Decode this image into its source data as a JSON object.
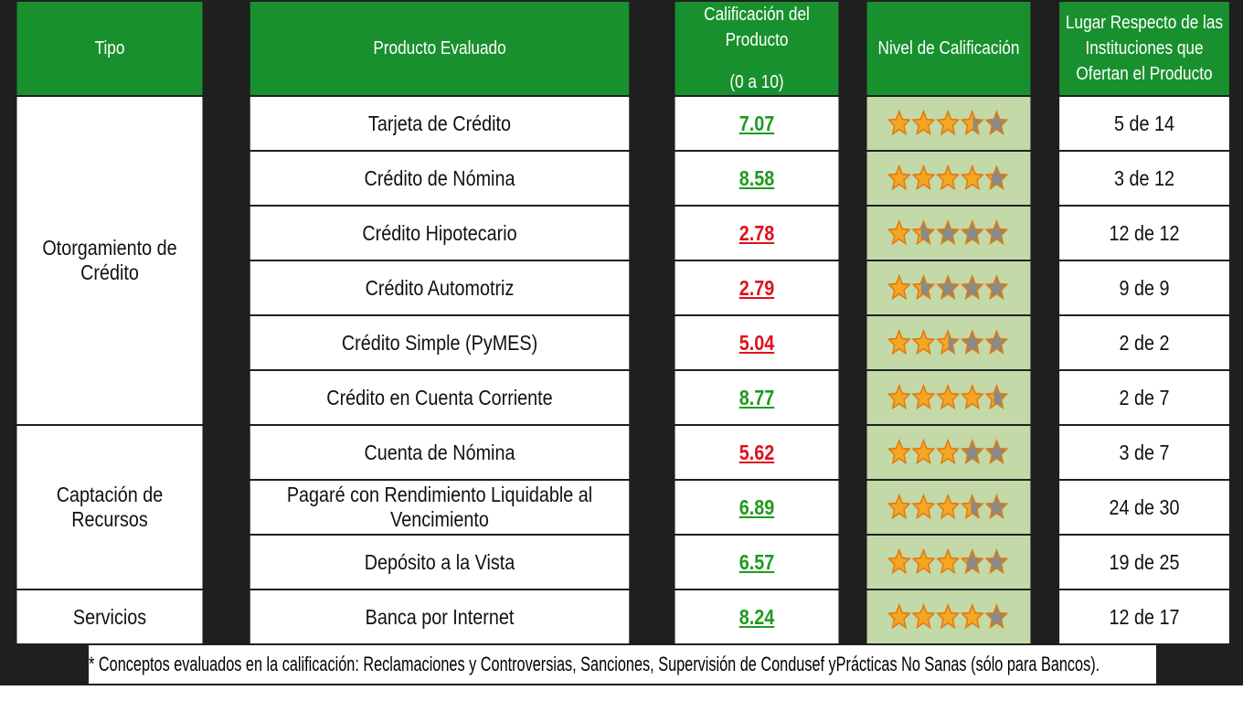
{
  "header": {
    "tipo": "Tipo",
    "producto": "Producto Evaluado",
    "calificacion_l1": "Calificación del Producto",
    "calificacion_l2": "(0 a 10)",
    "nivel": "Nivel de Calificación",
    "lugar": "Lugar Respecto de las Instituciones que Ofertan el Producto"
  },
  "colors": {
    "header_bg": "#19902e",
    "stars_bg": "#c3d9a7",
    "good": "#1e9a1e",
    "bad": "#e0101a",
    "star_fill": "#f5a623",
    "star_empty": "#8a8a8a"
  },
  "groups": [
    {
      "tipo": "Otorgamiento de Crédito",
      "rows": [
        {
          "producto": "Tarjeta de Crédito",
          "score": "7.07",
          "rating": 7.07,
          "status": "good",
          "lugar": "5 de 14"
        },
        {
          "producto": "Crédito de Nómina",
          "score": "8.58",
          "rating": 8.58,
          "status": "good",
          "lugar": "3 de 12"
        },
        {
          "producto": "Crédito Hipotecario",
          "score": "2.78",
          "rating": 2.78,
          "status": "bad",
          "lugar": "12 de 12"
        },
        {
          "producto": "Crédito Automotriz",
          "score": "2.79",
          "rating": 2.79,
          "status": "bad",
          "lugar": "9 de 9"
        },
        {
          "producto": "Crédito Simple (PyMES)",
          "score": "5.04",
          "rating": 5.04,
          "status": "bad",
          "lugar": "2 de 2"
        },
        {
          "producto": "Crédito en Cuenta Corriente",
          "score": "8.77",
          "rating": 8.77,
          "status": "good",
          "lugar": "2 de 7"
        }
      ]
    },
    {
      "tipo": "Captación de Recursos",
      "rows": [
        {
          "producto": "Cuenta de Nómina",
          "score": "5.62",
          "rating": 5.62,
          "status": "bad",
          "lugar": "3 de 7"
        },
        {
          "producto": "Pagaré con Rendimiento Liquidable al Vencimiento",
          "score": "6.89",
          "rating": 6.89,
          "status": "good",
          "lugar": "24 de 30"
        },
        {
          "producto": "Depósito a la Vista",
          "score": "6.57",
          "rating": 6.57,
          "status": "good",
          "lugar": "19 de 25"
        }
      ]
    },
    {
      "tipo": "Servicios",
      "rows": [
        {
          "producto": "Banca por Internet",
          "score": "8.24",
          "rating": 8.24,
          "status": "good",
          "lugar": "12 de 17"
        }
      ]
    }
  ],
  "footnote": "* Conceptos evaluados en la calificación: Reclamaciones y Controversias, Sanciones, Supervisión de Condusef yPrácticas No Sanas (sólo para Bancos)."
}
